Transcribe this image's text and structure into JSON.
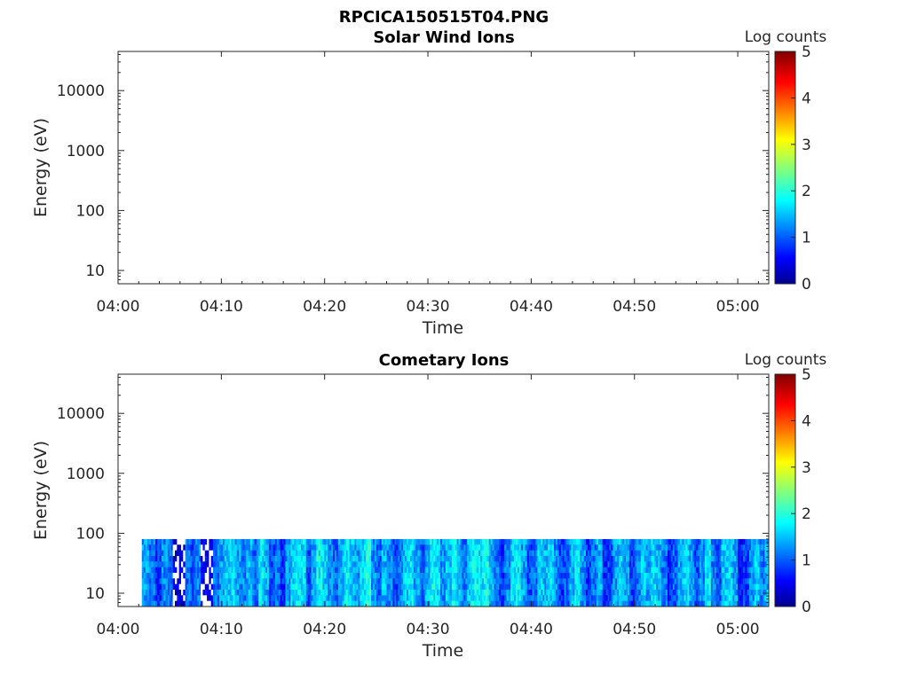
{
  "figure": {
    "title": "RPCICA150515T04.PNG"
  },
  "chart_data": [
    {
      "type": "heatmap",
      "title": "Solar Wind Ions",
      "xlabel": "Time",
      "ylabel": "Energy (eV)",
      "x_ticks": [
        "04:00",
        "04:10",
        "04:20",
        "04:30",
        "04:40",
        "04:50",
        "05:00"
      ],
      "x_range_minutes": [
        0,
        63
      ],
      "y_scale": "log",
      "y_ticks": [
        "10",
        "100",
        "1000",
        "10000"
      ],
      "y_range": [
        6,
        45000
      ],
      "colorbar": {
        "label": "Log counts",
        "ticks": [
          "0",
          "1",
          "2",
          "3",
          "4",
          "5"
        ],
        "range": [
          0,
          5
        ],
        "colormap": "jet"
      },
      "data": "empty"
    },
    {
      "type": "heatmap",
      "title": "Cometary Ions",
      "xlabel": "Time",
      "ylabel": "Energy (eV)",
      "x_ticks": [
        "04:00",
        "04:10",
        "04:20",
        "04:30",
        "04:40",
        "04:50",
        "05:00"
      ],
      "x_range_minutes": [
        0,
        63
      ],
      "y_scale": "log",
      "y_ticks": [
        "10",
        "100",
        "1000",
        "10000"
      ],
      "y_range": [
        6,
        45000
      ],
      "colorbar": {
        "label": "Log counts",
        "ticks": [
          "0",
          "1",
          "2",
          "3",
          "4",
          "5"
        ],
        "range": [
          0,
          5
        ],
        "colormap": "jet"
      },
      "data_extent": {
        "time_start": "04:02.3",
        "time_end": "05:03",
        "energy_min_eV": 6,
        "energy_max_eV": 80
      },
      "column_log_counts": [
        {
          "t": 2.3,
          "v": 1.4
        },
        {
          "t": 3.0,
          "v": 1.2
        },
        {
          "t": 3.6,
          "v": 0.9
        },
        {
          "t": 4.2,
          "v": 1.3
        },
        {
          "t": 4.8,
          "v": 1.1
        },
        {
          "t": 5.3,
          "v": 0.4
        },
        {
          "t": 5.9,
          "v": 0.3
        },
        {
          "t": 6.5,
          "v": 1.2
        },
        {
          "t": 7.0,
          "v": 1.0
        },
        {
          "t": 7.5,
          "v": 1.3
        },
        {
          "t": 8.0,
          "v": 0.5
        },
        {
          "t": 8.6,
          "v": 0.4
        },
        {
          "t": 9.2,
          "v": 1.2
        },
        {
          "t": 9.8,
          "v": 1.4
        },
        {
          "t": 10.3,
          "v": 1.6
        },
        {
          "t": 10.8,
          "v": 1.7
        },
        {
          "t": 11.3,
          "v": 1.4
        },
        {
          "t": 11.9,
          "v": 1.3
        },
        {
          "t": 12.4,
          "v": 1.5
        },
        {
          "t": 13.0,
          "v": 1.2
        },
        {
          "t": 13.6,
          "v": 1.8
        },
        {
          "t": 14.1,
          "v": 1.5
        },
        {
          "t": 14.6,
          "v": 1.0
        },
        {
          "t": 15.2,
          "v": 1.2
        },
        {
          "t": 15.7,
          "v": 0.8
        },
        {
          "t": 16.2,
          "v": 1.4
        },
        {
          "t": 16.7,
          "v": 1.6
        },
        {
          "t": 17.2,
          "v": 1.8
        },
        {
          "t": 17.7,
          "v": 1.7
        },
        {
          "t": 18.2,
          "v": 1.0
        },
        {
          "t": 18.7,
          "v": 1.4
        },
        {
          "t": 19.2,
          "v": 1.9
        },
        {
          "t": 19.8,
          "v": 1.6
        },
        {
          "t": 20.3,
          "v": 1.3
        },
        {
          "t": 20.8,
          "v": 1.1
        },
        {
          "t": 21.3,
          "v": 1.5
        },
        {
          "t": 21.9,
          "v": 1.8
        },
        {
          "t": 22.4,
          "v": 1.6
        },
        {
          "t": 22.9,
          "v": 1.4
        },
        {
          "t": 23.4,
          "v": 1.7
        },
        {
          "t": 24.0,
          "v": 2.0
        },
        {
          "t": 24.5,
          "v": 1.3
        },
        {
          "t": 25.0,
          "v": 1.1
        },
        {
          "t": 25.5,
          "v": 1.5
        },
        {
          "t": 26.0,
          "v": 1.3
        },
        {
          "t": 26.6,
          "v": 1.0
        },
        {
          "t": 27.1,
          "v": 1.2
        },
        {
          "t": 27.6,
          "v": 1.6
        },
        {
          "t": 28.1,
          "v": 1.8
        },
        {
          "t": 28.6,
          "v": 1.4
        },
        {
          "t": 29.2,
          "v": 1.1
        },
        {
          "t": 29.7,
          "v": 1.5
        },
        {
          "t": 30.2,
          "v": 1.9
        },
        {
          "t": 30.7,
          "v": 1.7
        },
        {
          "t": 31.2,
          "v": 1.3
        },
        {
          "t": 31.7,
          "v": 1.6
        },
        {
          "t": 32.3,
          "v": 1.9
        },
        {
          "t": 32.8,
          "v": 1.5
        },
        {
          "t": 33.3,
          "v": 1.2
        },
        {
          "t": 33.8,
          "v": 1.6
        },
        {
          "t": 34.3,
          "v": 1.8
        },
        {
          "t": 34.9,
          "v": 1.7
        },
        {
          "t": 35.4,
          "v": 1.9
        },
        {
          "t": 35.9,
          "v": 1.5
        },
        {
          "t": 36.4,
          "v": 1.2
        },
        {
          "t": 36.9,
          "v": 0.9
        },
        {
          "t": 37.4,
          "v": 1.3
        },
        {
          "t": 38.0,
          "v": 1.7
        },
        {
          "t": 38.5,
          "v": 1.8
        },
        {
          "t": 39.0,
          "v": 1.4
        },
        {
          "t": 39.6,
          "v": 1.0
        },
        {
          "t": 40.1,
          "v": 1.2
        },
        {
          "t": 40.6,
          "v": 1.6
        },
        {
          "t": 41.1,
          "v": 1.5
        },
        {
          "t": 41.6,
          "v": 1.7
        },
        {
          "t": 42.2,
          "v": 1.3
        },
        {
          "t": 42.7,
          "v": 0.9
        },
        {
          "t": 43.2,
          "v": 1.1
        },
        {
          "t": 43.7,
          "v": 1.5
        },
        {
          "t": 44.2,
          "v": 1.8
        },
        {
          "t": 44.7,
          "v": 1.4
        },
        {
          "t": 45.3,
          "v": 0.9
        },
        {
          "t": 45.8,
          "v": 1.2
        },
        {
          "t": 46.3,
          "v": 1.5
        },
        {
          "t": 46.9,
          "v": 0.8
        },
        {
          "t": 47.4,
          "v": 1.0
        },
        {
          "t": 47.9,
          "v": 1.4
        },
        {
          "t": 48.5,
          "v": 1.6
        },
        {
          "t": 49.0,
          "v": 1.4
        },
        {
          "t": 49.5,
          "v": 0.9
        },
        {
          "t": 50.0,
          "v": 1.2
        },
        {
          "t": 50.6,
          "v": 1.6
        },
        {
          "t": 51.1,
          "v": 1.4
        },
        {
          "t": 51.6,
          "v": 1.7
        },
        {
          "t": 52.1,
          "v": 1.5
        },
        {
          "t": 52.6,
          "v": 1.2
        },
        {
          "t": 53.2,
          "v": 0.8
        },
        {
          "t": 53.7,
          "v": 1.1
        },
        {
          "t": 54.2,
          "v": 1.5
        },
        {
          "t": 54.8,
          "v": 1.7
        },
        {
          "t": 55.3,
          "v": 1.4
        },
        {
          "t": 55.8,
          "v": 1.0
        },
        {
          "t": 56.3,
          "v": 1.3
        },
        {
          "t": 56.8,
          "v": 1.8
        },
        {
          "t": 57.4,
          "v": 1.2
        },
        {
          "t": 57.9,
          "v": 0.9
        },
        {
          "t": 58.4,
          "v": 1.6
        },
        {
          "t": 58.9,
          "v": 1.7
        },
        {
          "t": 59.5,
          "v": 1.4
        },
        {
          "t": 60.0,
          "v": 0.8
        },
        {
          "t": 60.5,
          "v": 0.9
        },
        {
          "t": 61.1,
          "v": 1.3
        },
        {
          "t": 61.6,
          "v": 1.6
        },
        {
          "t": 62.1,
          "v": 1.2
        },
        {
          "t": 62.6,
          "v": 1.5
        }
      ]
    }
  ]
}
